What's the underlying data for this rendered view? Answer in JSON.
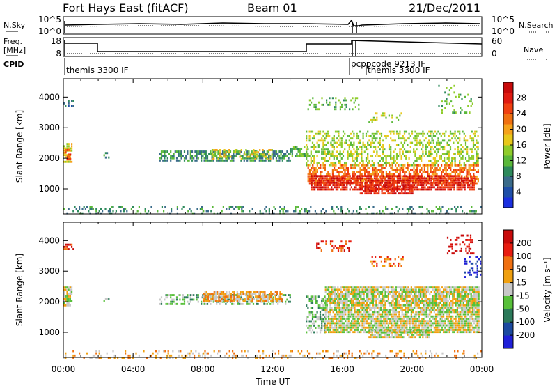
{
  "header": {
    "station": "Fort Hays East (fitACF)",
    "beam": "Beam 01",
    "date": "21/Dec/2011"
  },
  "top_panels": {
    "noise": {
      "left_label": "N.Sky",
      "right_label": "N.Search",
      "left_ticks": [
        "10^5",
        "10^0"
      ],
      "right_ticks": [
        "10^5",
        "10^0"
      ]
    },
    "freq": {
      "left_label_1": "Freq.",
      "left_label_2": "[MHz]",
      "right_label": "Nave",
      "left_ticks": [
        "18",
        "8"
      ],
      "right_ticks": [
        "60",
        "0"
      ]
    },
    "cpid": {
      "label": "CPID",
      "modes": [
        {
          "name": "themis 3300 IF",
          "start_hour": 0
        },
        {
          "name": "pcppcode 9213 IF",
          "start_hour": 16.6
        },
        {
          "name": "themis 3300 IF",
          "start_hour": 17.3
        }
      ]
    }
  },
  "colorbars": {
    "power": {
      "label": "Power [dB]",
      "ticks": [
        "28",
        "24",
        "20",
        "16",
        "12",
        "8",
        "4"
      ]
    },
    "velocity": {
      "label": "Velocity [m s⁻¹]",
      "ticks": [
        "200",
        "100",
        "50",
        "15",
        "-15",
        "-50",
        "-100",
        "-200"
      ]
    }
  },
  "colors": {
    "power_scale": [
      "#1b2fe0",
      "#1f4fa8",
      "#3a6b8a",
      "#2e8a5c",
      "#5ab83a",
      "#8fcc2a",
      "#e8c81a",
      "#f5a21a",
      "#f07010",
      "#f04010",
      "#e01a10",
      "#c80a0a"
    ],
    "velocity_scale": [
      "#2020d8",
      "#1c4aa0",
      "#2c7a5a",
      "#58c03a",
      "#c8c8c8",
      "#f0a010",
      "#f07010",
      "#e81c10",
      "#c80a0a"
    ],
    "ground_scatter": "#bebebe"
  },
  "chart_data": [
    {
      "type": "heatmap",
      "title": "Power",
      "xlabel": "Time UT",
      "ylabel": "Slant Range [km]",
      "x_ticks": [
        "00:00",
        "04:00",
        "08:00",
        "12:00",
        "16:00",
        "20:00",
        "00:00"
      ],
      "y_ticks": [
        "1000",
        "2000",
        "3000",
        "4000"
      ],
      "xlim": [
        0,
        24
      ],
      "ylim": [
        180,
        4600
      ],
      "colorbar": "Power [dB]",
      "regions": [
        {
          "t0": 0.0,
          "t1": 0.6,
          "r0": 3700,
          "r1": 3900,
          "level": 2,
          "density": 0.5
        },
        {
          "t0": 0.0,
          "t1": 0.5,
          "r0": 1900,
          "r1": 2500,
          "level": 6,
          "density": 0.7
        },
        {
          "t0": 0.1,
          "t1": 0.4,
          "r0": 2000,
          "r1": 2300,
          "level": 9,
          "density": 0.6
        },
        {
          "t0": 2.3,
          "t1": 2.6,
          "r0": 2000,
          "r1": 2200,
          "level": 3,
          "density": 0.3
        },
        {
          "t0": 5.5,
          "t1": 13.0,
          "r0": 1950,
          "r1": 2250,
          "level": 3,
          "density": 0.65
        },
        {
          "t0": 8.5,
          "t1": 12.0,
          "r0": 2000,
          "r1": 2300,
          "level": 6,
          "density": 0.35
        },
        {
          "t0": 13.0,
          "t1": 14.0,
          "r0": 2100,
          "r1": 2400,
          "level": 4,
          "density": 0.6
        },
        {
          "t0": 13.9,
          "t1": 23.8,
          "r0": 1800,
          "r1": 2900,
          "level": 5,
          "density": 0.4
        },
        {
          "t0": 14.0,
          "t1": 23.8,
          "r0": 1150,
          "r1": 1800,
          "level": 8,
          "density": 0.6
        },
        {
          "t0": 14.2,
          "t1": 23.6,
          "r0": 1000,
          "r1": 1450,
          "level": 10,
          "density": 0.8
        },
        {
          "t0": 17.0,
          "t1": 20.0,
          "r0": 820,
          "r1": 1100,
          "level": 10,
          "density": 0.7
        },
        {
          "t0": 14.0,
          "t1": 17.0,
          "r0": 3600,
          "r1": 4000,
          "level": 4,
          "density": 0.25
        },
        {
          "t0": 17.5,
          "t1": 19.5,
          "r0": 3200,
          "r1": 3500,
          "level": 5,
          "density": 0.25
        },
        {
          "t0": 21.5,
          "t1": 23.5,
          "r0": 3500,
          "r1": 4400,
          "level": 4,
          "density": 0.2
        },
        {
          "t0": 0.0,
          "t1": 23.9,
          "r0": 200,
          "r1": 450,
          "level": 3,
          "density": 0.22
        }
      ]
    },
    {
      "type": "heatmap",
      "title": "Velocity",
      "xlabel": "Time UT",
      "ylabel": "Slant Range [km]",
      "x_ticks": [
        "00:00",
        "04:00",
        "08:00",
        "12:00",
        "16:00",
        "20:00",
        "00:00"
      ],
      "y_ticks": [
        "1000",
        "2000",
        "3000",
        "4000"
      ],
      "xlim": [
        0,
        24
      ],
      "ylim": [
        180,
        4600
      ],
      "colorbar": "Velocity [m s⁻¹]",
      "regions": [
        {
          "t0": 0.0,
          "t1": 0.6,
          "r0": 3700,
          "r1": 3900,
          "level": 7,
          "density": 0.5
        },
        {
          "t0": 0.0,
          "t1": 0.5,
          "r0": 1900,
          "r1": 2500,
          "level": 4,
          "density": 0.8
        },
        {
          "t0": 2.3,
          "t1": 2.6,
          "r0": 2000,
          "r1": 2200,
          "level": 3,
          "density": 0.3
        },
        {
          "t0": 5.5,
          "t1": 13.0,
          "r0": 1950,
          "r1": 2250,
          "level": 3,
          "density": 0.5
        },
        {
          "t0": 8.0,
          "t1": 12.5,
          "r0": 2000,
          "r1": 2350,
          "level": 5,
          "density": 0.7
        },
        {
          "t0": 13.9,
          "t1": 15.0,
          "r0": 1000,
          "r1": 2200,
          "level": 3,
          "density": 0.5
        },
        {
          "t0": 15.0,
          "t1": 23.8,
          "r0": 1000,
          "r1": 2500,
          "level": 4,
          "density": 0.85
        },
        {
          "t0": 17.5,
          "t1": 21.0,
          "r0": 850,
          "r1": 1100,
          "level": 4,
          "density": 0.8
        },
        {
          "t0": 14.5,
          "t1": 16.5,
          "r0": 3700,
          "r1": 4000,
          "level": 7,
          "density": 0.35
        },
        {
          "t0": 17.5,
          "t1": 19.5,
          "r0": 3200,
          "r1": 3500,
          "level": 6,
          "density": 0.3
        },
        {
          "t0": 22.0,
          "t1": 23.5,
          "r0": 3600,
          "r1": 4200,
          "level": 8,
          "density": 0.35
        },
        {
          "t0": 23.0,
          "t1": 23.9,
          "r0": 2800,
          "r1": 3500,
          "level": 0,
          "density": 0.4
        },
        {
          "t0": 0.0,
          "t1": 23.9,
          "r0": 200,
          "r1": 420,
          "level": 5,
          "density": 0.2
        }
      ]
    }
  ]
}
